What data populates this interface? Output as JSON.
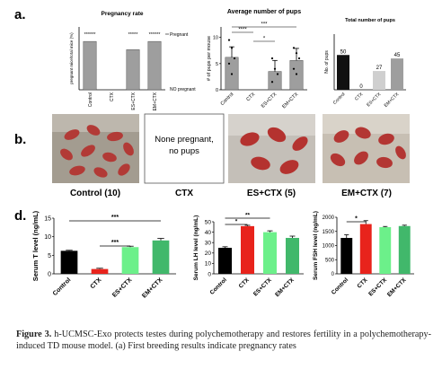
{
  "panel_labels": {
    "a": "a.",
    "b": "b.",
    "d": "d."
  },
  "panel_a": {
    "pregnancy": {
      "title": "Pregnancy rate",
      "ylabel": "pregnant mice/total mice (%)",
      "pregnant_label": "Pregnant",
      "not_pregnant_label": "NO pregnant",
      "sig": [
        "******",
        "",
        "*****",
        "******"
      ]
    },
    "avg_pups": {
      "title": "Average number of pups",
      "ylabel": "# of pups per mouse",
      "yticks": [
        "0",
        "5",
        "10"
      ],
      "sig_pairs": [
        {
          "text": "****"
        },
        {
          "text": "***"
        },
        {
          "text": "*"
        }
      ]
    },
    "total_pups": {
      "title": "Total number of pups",
      "ylabel": "No. of pups",
      "value_labels": [
        "50",
        "0",
        "27",
        "45"
      ]
    }
  },
  "panel_b": {
    "none_text_1": "None pregnant,",
    "none_text_2": "no pups",
    "labels": [
      "Control (10)",
      "CTX",
      "ES+CTX (5)",
      "EM+CTX (7)"
    ]
  },
  "panel_d": {
    "sig_T": [
      "***",
      "***"
    ],
    "sig_LH": [
      "**",
      "*"
    ],
    "sig_FSH": [
      "*"
    ]
  },
  "chart_data": [
    {
      "type": "bar",
      "title": "Pregnancy rate",
      "xlabel": "",
      "ylabel": "pregnant mice/total mice (%)",
      "categories": [
        "Control",
        "CTX",
        "ES+CTX",
        "EM+CTX"
      ],
      "values": [
        100,
        0,
        83,
        100
      ],
      "ylim": [
        0,
        130
      ],
      "colors": [
        "#9e9e9e",
        "#9e9e9e",
        "#9e9e9e",
        "#9e9e9e"
      ]
    },
    {
      "type": "bar",
      "title": "Average number of pups",
      "xlabel": "",
      "ylabel": "# of pups per mouse",
      "categories": [
        "Control",
        "CTX",
        "ES+CTX",
        "EM+CTX"
      ],
      "values": [
        6.2,
        0,
        3.5,
        5.6
      ],
      "errors": [
        2.0,
        0,
        2.1,
        2.3
      ],
      "points": [
        [
          9.5,
          8,
          6,
          5,
          3
        ],
        [],
        [
          6,
          4,
          3,
          1.5
        ],
        [
          8,
          7,
          6,
          4,
          3
        ]
      ],
      "yticks": [
        0,
        5,
        10
      ],
      "ylim": [
        0,
        12
      ],
      "colors": [
        "#9e9e9e",
        "#9e9e9e",
        "#9e9e9e",
        "#9e9e9e"
      ]
    },
    {
      "type": "bar",
      "title": "Total number of pups",
      "xlabel": "",
      "ylabel": "No. of pups",
      "categories": [
        "Control",
        "CTX",
        "ES+CTX",
        "EM+CTX"
      ],
      "values": [
        50,
        0,
        27,
        45
      ],
      "ylim": [
        0,
        80
      ],
      "colors": [
        "#111111",
        "#777777",
        "#cfcfcf",
        "#9e9e9e"
      ]
    },
    {
      "type": "bar",
      "title": "",
      "xlabel": "",
      "ylabel": "Serum T level (ng/mL)",
      "categories": [
        "Control",
        "CTX",
        "ES+CTX",
        "EM+CTX"
      ],
      "values": [
        6.2,
        1.3,
        7.2,
        9.0
      ],
      "errors": [
        0.15,
        0.2,
        0.25,
        0.55
      ],
      "yticks": [
        0,
        5,
        10,
        15
      ],
      "ylim": [
        0,
        15
      ],
      "colors": [
        "#000000",
        "#e8231c",
        "#6cf08a",
        "#41b86b"
      ]
    },
    {
      "type": "bar",
      "title": "",
      "xlabel": "",
      "ylabel": "Serum LH level (ng/mL)",
      "categories": [
        "Control",
        "CTX",
        "ES+CTX",
        "EM+CTX"
      ],
      "values": [
        25,
        45.8,
        40,
        34.5
      ],
      "errors": [
        1.0,
        0.8,
        1.3,
        1.7
      ],
      "yticks": [
        0,
        10,
        20,
        30,
        40,
        50
      ],
      "ylim": [
        0,
        50
      ],
      "colors": [
        "#000000",
        "#e8231c",
        "#6cf08a",
        "#41b86b"
      ]
    },
    {
      "type": "bar",
      "title": "",
      "xlabel": "",
      "ylabel": "Serum FSH level (ng/mL)",
      "categories": [
        "Control",
        "CTX",
        "ES+CTX",
        "EM+CTX"
      ],
      "values": [
        1270,
        1760,
        1650,
        1690
      ],
      "errors": [
        110,
        120,
        25,
        30
      ],
      "yticks": [
        0,
        500,
        1000,
        1500,
        2000
      ],
      "ylim": [
        0,
        2000
      ],
      "colors": [
        "#000000",
        "#e8231c",
        "#6cf08a",
        "#41b86b"
      ]
    }
  ],
  "caption": {
    "label": "Figure 3.",
    "text": "h-UCMSC-Exo protects testes during polychemotherapy and restores fertility in a polychemotherapy-induced TD mouse model. (a) First breeding results indicate pregnancy rates"
  }
}
